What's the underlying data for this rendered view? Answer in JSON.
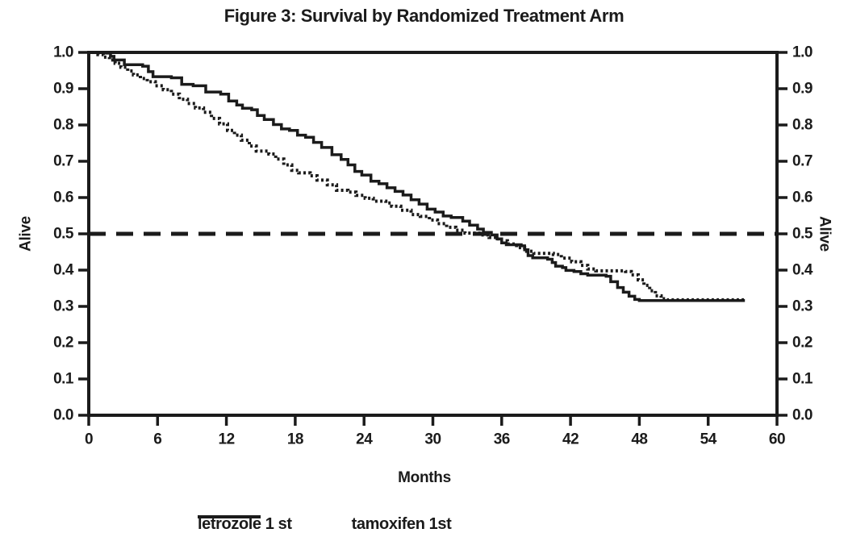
{
  "figure": {
    "title": "Figure 3: Survival by Randomized Treatment Arm",
    "x_axis_title": "Months",
    "y_axis_title_left": "Alive",
    "y_axis_title_right": "Alive",
    "ink_color": "#1b1b1b",
    "background_color": "#ffffff",
    "legend": [
      {
        "label": "letrozole 1 st",
        "swatch": "solid-line-icon",
        "style": "solid"
      },
      {
        "label": "tamoxifen 1st",
        "swatch": "dashed-line-icon",
        "style": "dashed"
      }
    ]
  },
  "chart_data": {
    "type": "line",
    "subtype": "kaplan-meier-step-survival",
    "title": "Figure 3: Survival by Randomized Treatment Arm",
    "xlabel": "Months",
    "ylabel": "Alive",
    "xlim": [
      0,
      60
    ],
    "ylim": [
      0.0,
      1.0
    ],
    "x_ticks": [
      "0",
      "6",
      "12",
      "18",
      "24",
      "30",
      "36",
      "42",
      "48",
      "54",
      "60"
    ],
    "y_ticks": [
      "1.0",
      "0.9",
      "0.8",
      "0.7",
      "0.6",
      "0.5",
      "0.4",
      "0.3",
      "0.2",
      "0.1",
      "0.0"
    ],
    "y_axis_sides": [
      "left",
      "right"
    ],
    "grid": false,
    "legend_position": "bottom",
    "reference_line_y": 0.5,
    "series": [
      {
        "name": "letrozole 1 st",
        "line_style": "solid",
        "points": [
          [
            0,
            1.0
          ],
          [
            1.6,
            0.998
          ],
          [
            1.9,
            0.989
          ],
          [
            2.2,
            0.979
          ],
          [
            3.1,
            0.966
          ],
          [
            4.7,
            0.962
          ],
          [
            5.2,
            0.947
          ],
          [
            5.6,
            0.933
          ],
          [
            7.2,
            0.93
          ],
          [
            8.1,
            0.912
          ],
          [
            9.1,
            0.908
          ],
          [
            10.2,
            0.891
          ],
          [
            11.5,
            0.885
          ],
          [
            12.2,
            0.866
          ],
          [
            12.9,
            0.855
          ],
          [
            13.4,
            0.846
          ],
          [
            14.2,
            0.842
          ],
          [
            14.7,
            0.826
          ],
          [
            15.3,
            0.815
          ],
          [
            16.1,
            0.801
          ],
          [
            16.8,
            0.789
          ],
          [
            17.5,
            0.785
          ],
          [
            18.2,
            0.772
          ],
          [
            18.9,
            0.766
          ],
          [
            19.6,
            0.752
          ],
          [
            20.3,
            0.738
          ],
          [
            21.2,
            0.718
          ],
          [
            22,
            0.705
          ],
          [
            22.6,
            0.69
          ],
          [
            23.2,
            0.672
          ],
          [
            23.8,
            0.662
          ],
          [
            24.6,
            0.645
          ],
          [
            25.3,
            0.638
          ],
          [
            26,
            0.627
          ],
          [
            26.7,
            0.617
          ],
          [
            27.4,
            0.607
          ],
          [
            28.1,
            0.594
          ],
          [
            28.8,
            0.582
          ],
          [
            29.5,
            0.568
          ],
          [
            30.2,
            0.56
          ],
          [
            30.9,
            0.549
          ],
          [
            31.6,
            0.545
          ],
          [
            32.6,
            0.535
          ],
          [
            33.2,
            0.524
          ],
          [
            33.9,
            0.513
          ],
          [
            34.4,
            0.504
          ],
          [
            35.1,
            0.497
          ],
          [
            35.6,
            0.486
          ],
          [
            36,
            0.475
          ],
          [
            36.4,
            0.47
          ],
          [
            37.7,
            0.467
          ],
          [
            38,
            0.456
          ],
          [
            38.3,
            0.44
          ],
          [
            38.7,
            0.434
          ],
          [
            40,
            0.43
          ],
          [
            40.4,
            0.421
          ],
          [
            40.7,
            0.411
          ],
          [
            41.3,
            0.407
          ],
          [
            41.6,
            0.399
          ],
          [
            42.3,
            0.396
          ],
          [
            42.9,
            0.39
          ],
          [
            43.5,
            0.386
          ],
          [
            45.1,
            0.383
          ],
          [
            45.5,
            0.368
          ],
          [
            46.1,
            0.352
          ],
          [
            46.6,
            0.339
          ],
          [
            47.1,
            0.328
          ],
          [
            47.6,
            0.319
          ],
          [
            48,
            0.316
          ],
          [
            57.2,
            0.316
          ]
        ]
      },
      {
        "name": "tamoxifen 1st",
        "line_style": "dotted",
        "points": [
          [
            0,
            1.0
          ],
          [
            0.8,
            0.994
          ],
          [
            1.3,
            0.987
          ],
          [
            1.8,
            0.979
          ],
          [
            2.3,
            0.97
          ],
          [
            2.8,
            0.959
          ],
          [
            3.4,
            0.949
          ],
          [
            3.9,
            0.938
          ],
          [
            4.5,
            0.928
          ],
          [
            5.1,
            0.919
          ],
          [
            5.8,
            0.908
          ],
          [
            6.5,
            0.897
          ],
          [
            7.2,
            0.885
          ],
          [
            7.9,
            0.871
          ],
          [
            8.6,
            0.859
          ],
          [
            9.3,
            0.847
          ],
          [
            10,
            0.835
          ],
          [
            10.7,
            0.818
          ],
          [
            11.4,
            0.803
          ],
          [
            12.1,
            0.785
          ],
          [
            12.7,
            0.772
          ],
          [
            13.3,
            0.758
          ],
          [
            14,
            0.742
          ],
          [
            14.6,
            0.728
          ],
          [
            15.7,
            0.72
          ],
          [
            16.3,
            0.706
          ],
          [
            17,
            0.69
          ],
          [
            17.7,
            0.675
          ],
          [
            18.3,
            0.668
          ],
          [
            19.3,
            0.66
          ],
          [
            19.9,
            0.648
          ],
          [
            20.8,
            0.635
          ],
          [
            21.6,
            0.62
          ],
          [
            22.6,
            0.615
          ],
          [
            23.3,
            0.606
          ],
          [
            24.1,
            0.598
          ],
          [
            24.8,
            0.59
          ],
          [
            25.9,
            0.585
          ],
          [
            26.4,
            0.576
          ],
          [
            27.2,
            0.565
          ],
          [
            28.1,
            0.553
          ],
          [
            28.9,
            0.548
          ],
          [
            29.7,
            0.538
          ],
          [
            30.4,
            0.528
          ],
          [
            31.2,
            0.518
          ],
          [
            32,
            0.51
          ],
          [
            32.8,
            0.502
          ],
          [
            34.2,
            0.497
          ],
          [
            34.9,
            0.49
          ],
          [
            35.7,
            0.481
          ],
          [
            36.5,
            0.472
          ],
          [
            37.3,
            0.462
          ],
          [
            38,
            0.452
          ],
          [
            38.8,
            0.446
          ],
          [
            40.5,
            0.443
          ],
          [
            41.2,
            0.433
          ],
          [
            42.1,
            0.423
          ],
          [
            42.9,
            0.413
          ],
          [
            43.5,
            0.403
          ],
          [
            44.2,
            0.398
          ],
          [
            46.8,
            0.396
          ],
          [
            47.3,
            0.387
          ],
          [
            47.9,
            0.373
          ],
          [
            48.4,
            0.358
          ],
          [
            48.9,
            0.343
          ],
          [
            49.4,
            0.329
          ],
          [
            49.9,
            0.321
          ],
          [
            50.4,
            0.318
          ],
          [
            57.2,
            0.318
          ]
        ]
      }
    ]
  }
}
